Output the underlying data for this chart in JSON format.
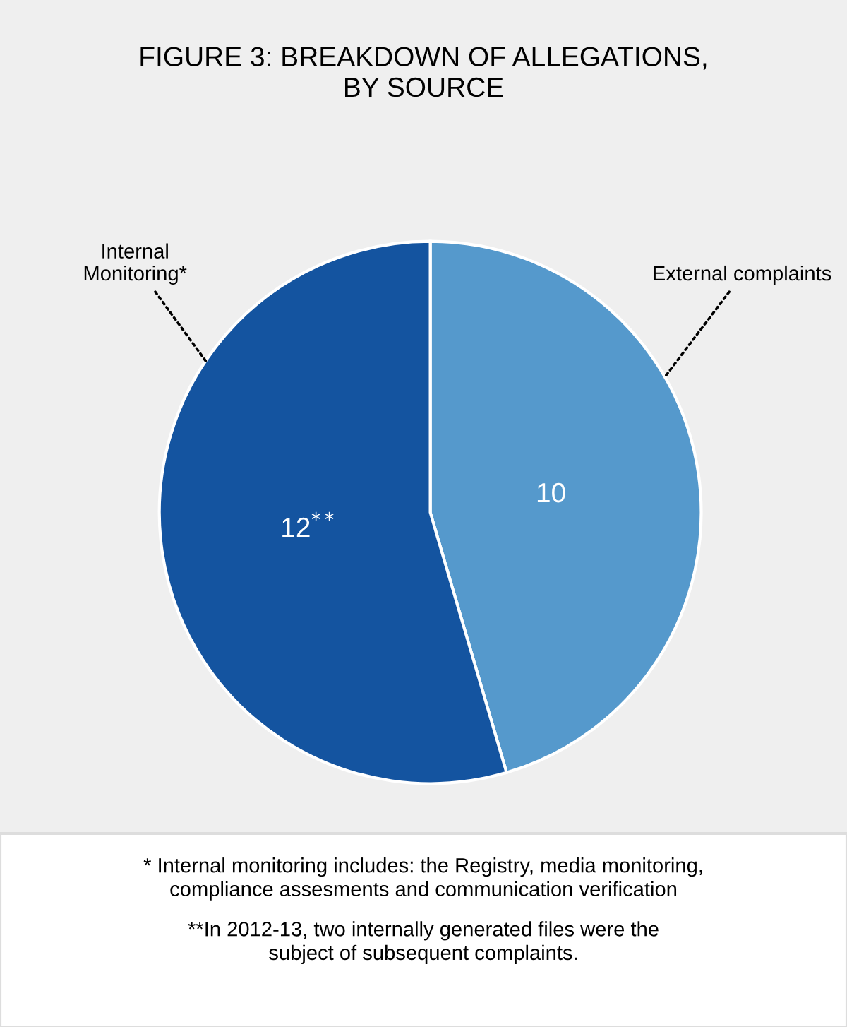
{
  "chart_data": {
    "type": "pie",
    "title": "FIGURE 3: BREAKDOWN OF ALLEGATIONS,\nBY SOURCE",
    "categories": [
      "External complaints",
      "Internal\nMonitoring*"
    ],
    "values": [
      10,
      12
    ],
    "colors": [
      "#5599cc",
      "#1454a0"
    ],
    "value_labels": [
      "10",
      "12$^{**}$"
    ],
    "annotations": [
      "* Internal monitoring includes: the Registry, media monitoring,\ncompliance assesments and communication verification",
      "**In 2012-13, two internally generated files were the\nsubject of subsequent complaints."
    ]
  }
}
